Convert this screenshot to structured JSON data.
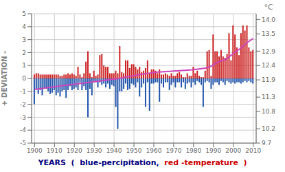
{
  "chart_data": {
    "type": "bar",
    "xlabel": [
      {
        "text": "YEARS  (  blue-percipitation,  ",
        "color": "#000080"
      },
      {
        "text": "red -temperature  )",
        "color": "#cc0000"
      }
    ],
    "ylabel": "+ DEVIATION -",
    "y2label": "°C",
    "x": [
      1900,
      1901,
      1902,
      1903,
      1904,
      1905,
      1906,
      1907,
      1908,
      1909,
      1910,
      1911,
      1912,
      1913,
      1914,
      1915,
      1916,
      1917,
      1918,
      1919,
      1920,
      1921,
      1922,
      1923,
      1924,
      1925,
      1926,
      1927,
      1928,
      1929,
      1930,
      1931,
      1932,
      1933,
      1934,
      1935,
      1936,
      1937,
      1938,
      1939,
      1940,
      1941,
      1942,
      1943,
      1944,
      1945,
      1946,
      1947,
      1948,
      1949,
      1950,
      1951,
      1952,
      1953,
      1954,
      1955,
      1956,
      1957,
      1958,
      1959,
      1960,
      1961,
      1962,
      1963,
      1964,
      1965,
      1966,
      1967,
      1968,
      1969,
      1970,
      1971,
      1972,
      1973,
      1974,
      1975,
      1976,
      1977,
      1978,
      1979,
      1980,
      1981,
      1982,
      1983,
      1984,
      1985,
      1986,
      1987,
      1988,
      1989,
      1990,
      1991,
      1992,
      1993,
      1994,
      1995,
      1996,
      1997,
      1998,
      1999,
      2000,
      2001,
      2002,
      2003,
      2004,
      2005,
      2006,
      2007,
      2008,
      2009,
      2010
    ],
    "series": [
      {
        "type": "bar",
        "color": "#2255aa",
        "values": [
          -2.0,
          -0.8,
          -1.2,
          -0.9,
          -1.3,
          -0.7,
          -0.8,
          -1.0,
          -1.2,
          -1.1,
          -0.9,
          -1.3,
          -1.1,
          -1.4,
          -1.0,
          -0.9,
          -1.5,
          -0.9,
          -0.6,
          -0.9,
          -0.8,
          -0.7,
          -0.9,
          -0.3,
          -0.9,
          -0.6,
          -0.9,
          -3.0,
          -0.8,
          -1.3,
          -0.2,
          -0.3,
          -0.7,
          -0.3,
          -0.5,
          -0.4,
          -0.7,
          -0.4,
          -0.8,
          -0.5,
          -0.6,
          -2.2,
          -3.9,
          -1.0,
          -1.0,
          -0.8,
          -0.4,
          -0.9,
          -0.8,
          -0.4,
          -0.5,
          -0.7,
          -0.3,
          -1.4,
          -0.7,
          -0.4,
          -2.2,
          -0.3,
          -2.5,
          -0.4,
          -0.4,
          -0.3,
          -0.3,
          -1.8,
          -0.4,
          -0.7,
          -0.3,
          -0.3,
          -0.9,
          -0.5,
          -0.3,
          -0.7,
          -0.3,
          -0.3,
          -0.7,
          -0.3,
          -0.8,
          -0.4,
          -0.3,
          -0.7,
          -0.3,
          -0.5,
          -0.2,
          -0.3,
          -0.5,
          -2.2,
          -0.3,
          -0.2,
          -0.3,
          -0.8,
          -0.5,
          -0.3,
          -0.3,
          -0.5,
          -0.2,
          -0.3,
          -0.5,
          -0.2,
          -0.3,
          -0.4,
          -0.3,
          -0.4,
          -0.3,
          -0.3,
          -0.4,
          -0.3,
          -0.2,
          -0.3,
          -0.2,
          -0.3,
          -0.4
        ]
      },
      {
        "type": "bar",
        "color": "#cc2222",
        "values": [
          0.3,
          0.4,
          0.4,
          0.3,
          0.3,
          0.3,
          0.3,
          0.3,
          0.3,
          0.3,
          0.3,
          0.3,
          0.3,
          0.2,
          0.2,
          0.3,
          0.3,
          0.4,
          0.3,
          0.4,
          0.3,
          0.2,
          0.9,
          0.3,
          0.1,
          0.4,
          1.3,
          2.1,
          0.4,
          0.1,
          0.6,
          0.2,
          0.3,
          1.8,
          1.9,
          1.0,
          0.9,
          0.9,
          0.4,
          0.4,
          0.4,
          0.6,
          0.4,
          2.5,
          0.5,
          0.4,
          1.4,
          1.4,
          0.8,
          1.1,
          1.1,
          0.9,
          0.7,
          0.9,
          0.5,
          0.6,
          0.8,
          1.4,
          0.4,
          0.7,
          0.7,
          0.6,
          0.4,
          0.7,
          0.3,
          0.3,
          0.4,
          0.3,
          0.2,
          0.4,
          0.2,
          0.2,
          0.4,
          0.5,
          0.3,
          0.1,
          0.1,
          0.4,
          0.2,
          0.2,
          0.9,
          0.4,
          0.6,
          0.2,
          0.1,
          0.1,
          0.6,
          2.1,
          2.2,
          0.2,
          3.4,
          2.1,
          2.1,
          1.7,
          2.2,
          1.7,
          1.6,
          1.9,
          3.5,
          1.4,
          4.1,
          3.4,
          2.4,
          1.8,
          3.5,
          4.1,
          3.7,
          4.1,
          2.4,
          2.1,
          2.2
        ]
      },
      {
        "type": "line",
        "color": "#cc44bb",
        "values": [
          -0.85,
          -0.83,
          -0.81,
          -0.79,
          -0.77,
          -0.75,
          -0.73,
          -0.71,
          -0.69,
          -0.67,
          -0.65,
          -0.63,
          -0.61,
          -0.59,
          -0.57,
          -0.55,
          -0.53,
          -0.51,
          -0.49,
          -0.47,
          -0.45,
          -0.43,
          -0.41,
          -0.39,
          -0.37,
          -0.35,
          -0.33,
          -0.31,
          -0.29,
          -0.27,
          -0.25,
          -0.23,
          -0.21,
          -0.19,
          -0.17,
          -0.15,
          -0.13,
          -0.11,
          -0.09,
          -0.07,
          -0.05,
          -0.03,
          -0.01,
          0.01,
          0.03,
          0.07,
          0.1,
          0.13,
          0.16,
          0.19,
          0.22,
          0.25,
          0.28,
          0.31,
          0.33,
          0.35,
          0.37,
          0.39,
          0.41,
          0.43,
          0.45,
          0.47,
          0.49,
          0.5,
          0.51,
          0.52,
          0.53,
          0.54,
          0.55,
          0.56,
          0.57,
          0.58,
          0.59,
          0.6,
          0.61,
          0.62,
          0.63,
          0.64,
          0.65,
          0.66,
          0.68,
          0.7,
          0.72,
          0.74,
          0.76,
          0.78,
          0.8,
          0.85,
          0.9,
          0.95,
          1.05,
          1.15,
          1.25,
          1.3,
          1.38,
          1.42,
          1.46,
          1.55,
          1.68,
          1.8,
          1.92,
          2.05,
          2.15,
          2.25,
          2.38,
          2.52,
          2.65,
          2.78,
          2.88,
          2.98,
          3.1
        ]
      }
    ],
    "xlim": [
      1898.5,
      2011.5
    ],
    "xticks": [
      1900,
      1910,
      1920,
      1930,
      1940,
      1950,
      1960,
      1970,
      1980,
      1990,
      2000,
      2010
    ],
    "ylim": [
      -5,
      5
    ],
    "yticks": [
      -5,
      -4,
      -3,
      -2,
      -1,
      0,
      1,
      2,
      3,
      4,
      5
    ],
    "y2lim": [
      9.7,
      14.2
    ],
    "y2ticks": [
      9.7,
      10.2,
      10.8,
      11.3,
      11.9,
      12.4,
      12.9,
      13.5,
      {
        "value": 14.0,
        "label": "14.0"
      }
    ],
    "grid": true
  }
}
